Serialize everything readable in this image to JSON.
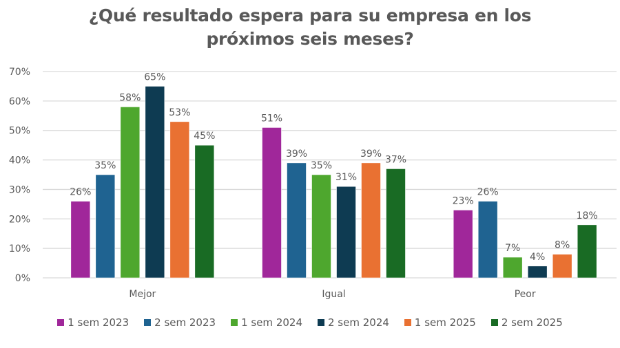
{
  "chart_data": {
    "type": "bar",
    "title": "¿Qué resultado espera para su empresa en los próximos seis meses?",
    "title_lines": [
      "¿Qué resultado espera para su empresa en los",
      "próximos seis meses?"
    ],
    "xlabel": "",
    "ylabel": "",
    "ylim": [
      0,
      70
    ],
    "yticks": [
      0,
      10,
      20,
      30,
      40,
      50,
      60,
      70
    ],
    "ytick_format": "{v}%",
    "grid": true,
    "legend_position": "bottom",
    "categories": [
      "Mejor",
      "Igual",
      "Peor"
    ],
    "series": [
      {
        "name": "1 sem 2023",
        "color": "#A0279A",
        "values": [
          26,
          51,
          23
        ],
        "labels": [
          "26%",
          "51%",
          "23%"
        ]
      },
      {
        "name": "2 sem 2023",
        "color": "#1F6391",
        "values": [
          35,
          39,
          26
        ],
        "labels": [
          "35%",
          "39%",
          "26%"
        ]
      },
      {
        "name": "1 sem 2024",
        "color": "#4EA72E",
        "values": [
          58,
          35,
          7
        ],
        "labels": [
          "58%",
          "35%",
          "7%"
        ]
      },
      {
        "name": "2 sem 2024",
        "color": "#0E3B52",
        "values": [
          65,
          31,
          4
        ],
        "labels": [
          "65%",
          "31%",
          "4%"
        ]
      },
      {
        "name": "1 sem 2025",
        "color": "#E97132",
        "values": [
          53,
          39,
          8
        ],
        "labels": [
          "53%",
          "39%",
          "8%"
        ]
      },
      {
        "name": "2 sem 2025",
        "color": "#196B24",
        "values": [
          45,
          37,
          18
        ],
        "labels": [
          "45%",
          "37%",
          "18%"
        ]
      }
    ]
  }
}
